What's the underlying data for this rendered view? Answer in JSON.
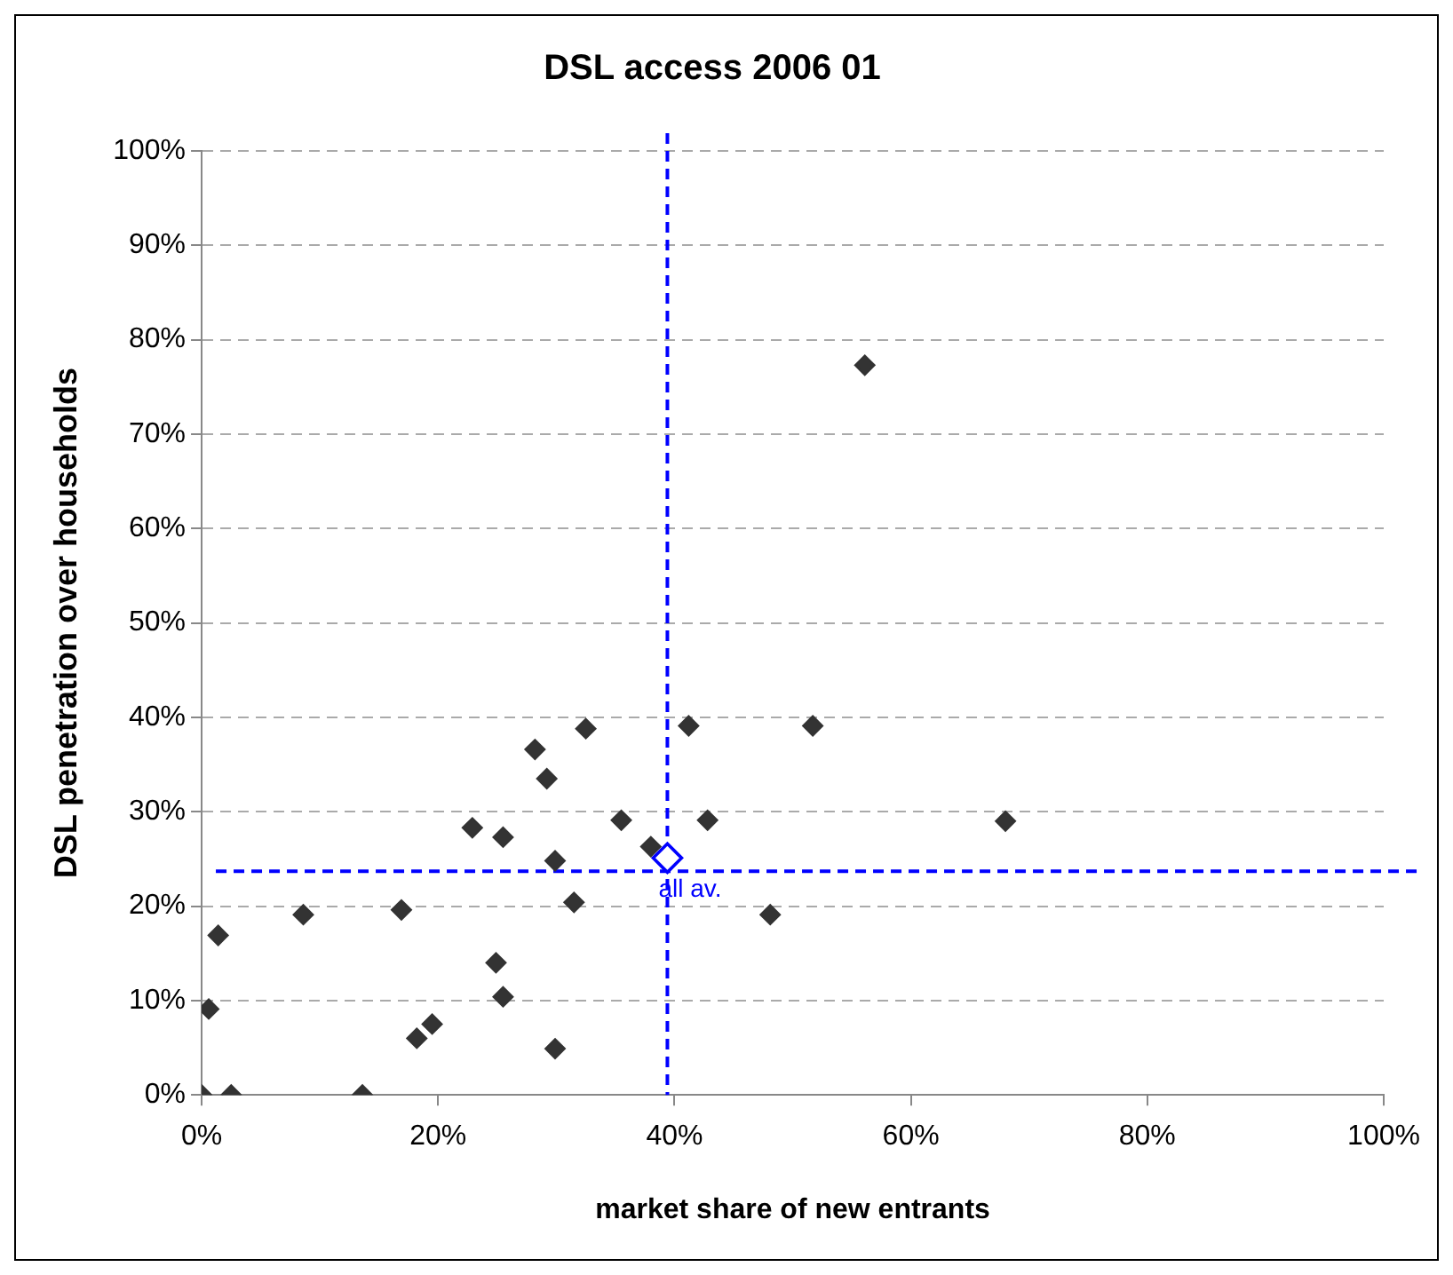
{
  "chart_data": {
    "type": "scatter",
    "title": "DSL access 2006 01",
    "xlabel": "market share of new entrants",
    "ylabel": "DSL penetration over households",
    "xlim": [
      0,
      100
    ],
    "xticks": [
      {
        "value": 0,
        "label": "0%"
      },
      {
        "value": 20,
        "label": "20%"
      },
      {
        "value": 40,
        "label": "40%"
      },
      {
        "value": 60,
        "label": "60%"
      },
      {
        "value": 80,
        "label": "80%"
      },
      {
        "value": 100,
        "label": "100%"
      }
    ],
    "ylim": [
      0,
      100
    ],
    "yticks": [
      {
        "value": 0,
        "label": "0%"
      },
      {
        "value": 10,
        "label": "10%"
      },
      {
        "value": 20,
        "label": "20%"
      },
      {
        "value": 30,
        "label": "30%"
      },
      {
        "value": 40,
        "label": "40%"
      },
      {
        "value": 50,
        "label": "50%"
      },
      {
        "value": 60,
        "label": "60%"
      },
      {
        "value": 70,
        "label": "70%"
      },
      {
        "value": 80,
        "label": "80%"
      },
      {
        "value": 90,
        "label": "90%"
      },
      {
        "value": 100,
        "label": "100%"
      }
    ],
    "grid": "y",
    "legend": false,
    "marker": "diamond",
    "series": [
      {
        "color": "#333333",
        "x": [
          0,
          2.5,
          13.6,
          0.6,
          1.4,
          8.6,
          16.9,
          18.2,
          19.5,
          24.9,
          25.5,
          29.9,
          22.9,
          25.5,
          28.2,
          29.2,
          32.5,
          29.9,
          31.5,
          35.5,
          38.0,
          41.2,
          42.8,
          51.7,
          48.1,
          68,
          56.1
        ],
        "values": [
          0,
          0,
          0,
          9.1,
          16.9,
          19.1,
          19.6,
          6.0,
          7.5,
          14.0,
          10.4,
          4.9,
          28.3,
          27.3,
          36.6,
          33.5,
          38.8,
          24.8,
          20.4,
          29.1,
          26.3,
          39.1,
          29.1,
          39.1,
          19.1,
          29.0,
          77.3
        ]
      },
      {
        "color": "#0000ff",
        "marker": "diamond",
        "x": [
          39.4
        ],
        "values": [
          25.1
        ]
      }
    ],
    "annotations": [
      {
        "text": "all av.",
        "x": 39.4,
        "y": 25.1
      }
    ],
    "ref_lines": [
      {
        "axis": "x",
        "value": 39.4,
        "color": "#0000ff",
        "line_style": "dashed"
      },
      {
        "axis": "y",
        "value": 23.7,
        "color": "#0000ff",
        "line_style": "dashed"
      }
    ]
  }
}
